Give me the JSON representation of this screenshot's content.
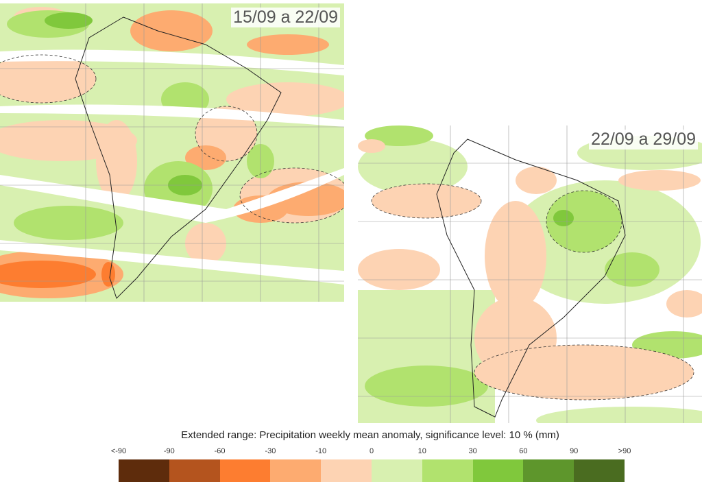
{
  "panels": [
    {
      "period": "15/09 a 22/09"
    },
    {
      "period": "22/09 a 29/09"
    }
  ],
  "legend": {
    "title": "Extended range: Precipitation weekly mean anomaly, significance level: 10 % (mm)",
    "ticks": [
      "<-90",
      "-90",
      "-60",
      "-30",
      "-10",
      "0",
      "10",
      "30",
      "60",
      "90",
      ">90"
    ],
    "colors": [
      "#5e2c0c",
      "#b4541e",
      "#fd7d30",
      "#fdab70",
      "#fdd3b3",
      "#d8f0b0",
      "#b1e26e",
      "#80c83c",
      "#5e962c",
      "#4a6c20"
    ]
  }
}
